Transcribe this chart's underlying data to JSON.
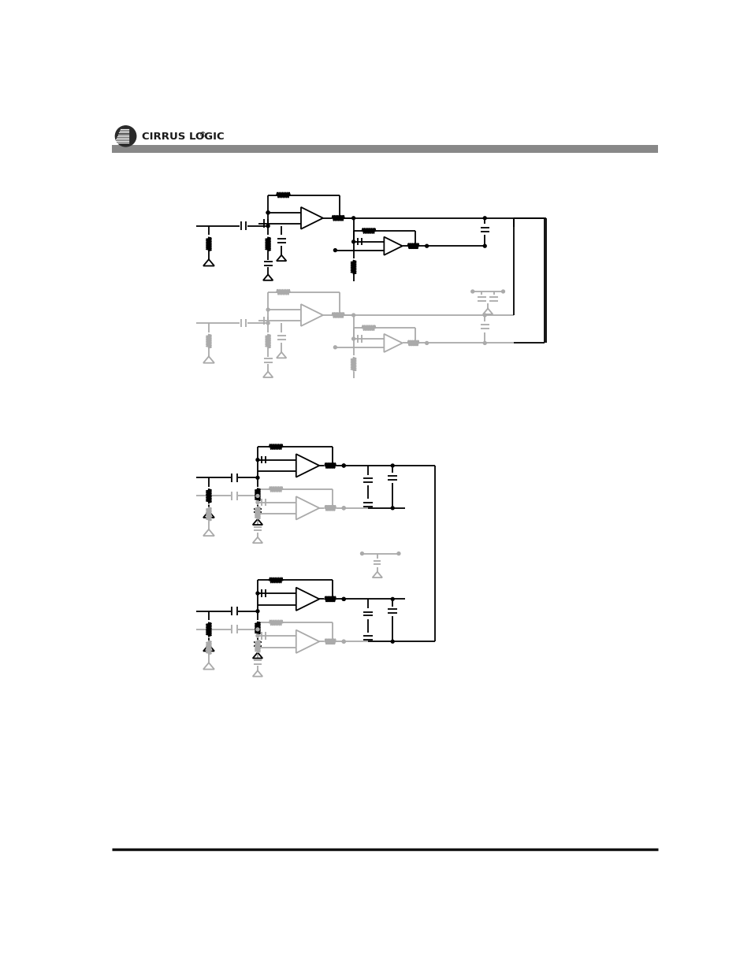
{
  "background_color": "#ffffff",
  "header_bar_color": "#888888",
  "footer_bar_color": "#111111",
  "lc": "#000000",
  "glc": "#aaaaaa",
  "lw": 1.3,
  "glw": 1.3
}
